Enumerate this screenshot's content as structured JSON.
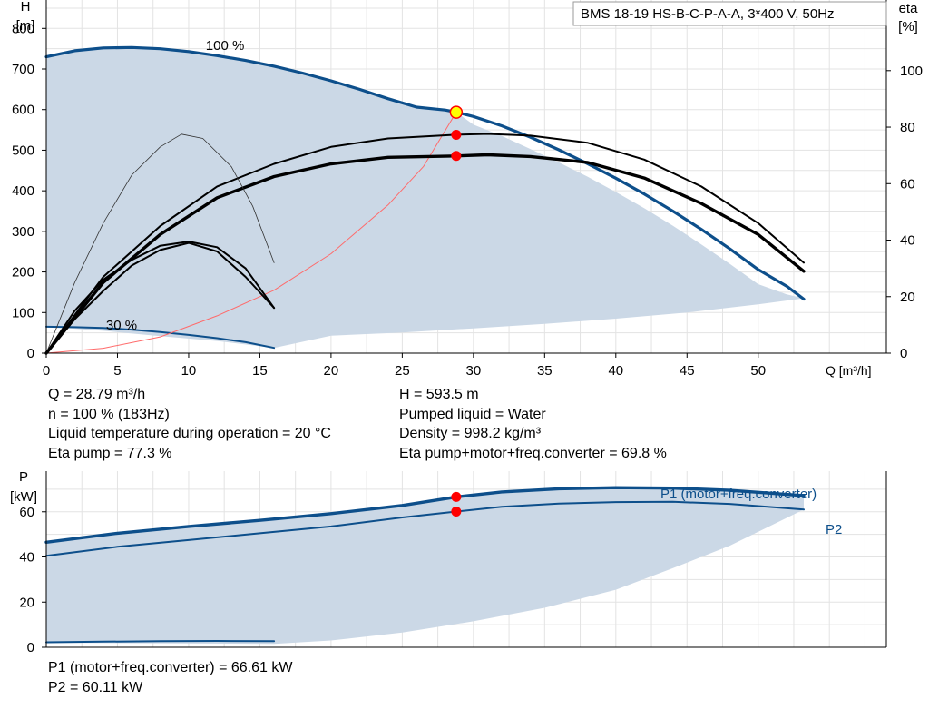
{
  "chart_data": [
    {
      "type": "line",
      "title": "BMS 18-19 HS-B-C-P-A-A, 3*400 V, 50Hz",
      "ylabel": "H",
      "ylabel_unit": "[m]",
      "y2label": "eta",
      "y2label_unit": "[%]",
      "xlabel": "Q [m³/h]",
      "xlim": [
        0,
        59
      ],
      "ylim": [
        0,
        870
      ],
      "y2lim": [
        0,
        125
      ],
      "xticks": [
        0,
        5,
        10,
        15,
        20,
        25,
        30,
        35,
        40,
        45,
        50
      ],
      "yticks": [
        0,
        100,
        200,
        300,
        400,
        500,
        600,
        700,
        800
      ],
      "y2ticks": [
        0,
        20,
        40,
        60,
        80,
        100
      ],
      "grid": true,
      "annotations": [
        {
          "text": "100 %",
          "x": 11.2,
          "y": 778
        },
        {
          "text": "30 %",
          "x": 4.2,
          "y": 90
        }
      ],
      "operating_area_upper": [
        [
          0,
          730
        ],
        [
          2,
          745
        ],
        [
          4,
          752
        ],
        [
          6,
          753
        ],
        [
          8,
          750
        ],
        [
          10,
          743
        ],
        [
          12,
          733
        ],
        [
          14,
          721
        ],
        [
          16,
          707
        ],
        [
          18,
          690
        ],
        [
          20,
          671
        ],
        [
          22,
          650
        ],
        [
          24,
          627
        ],
        [
          26,
          603
        ],
        [
          28.79,
          593.5
        ],
        [
          30,
          563
        ],
        [
          32,
          535
        ],
        [
          34,
          503
        ],
        [
          36,
          470
        ],
        [
          38,
          435
        ],
        [
          40,
          397
        ],
        [
          42,
          357
        ],
        [
          44,
          314
        ],
        [
          46,
          268
        ],
        [
          48,
          220
        ],
        [
          50,
          170
        ],
        [
          52,
          145
        ],
        [
          53.2,
          135
        ]
      ],
      "operating_area_lower": [
        [
          53.2,
          135
        ],
        [
          50,
          120
        ],
        [
          45,
          100
        ],
        [
          40,
          85
        ],
        [
          35,
          72
        ],
        [
          30,
          61
        ],
        [
          25,
          51
        ],
        [
          20,
          43
        ],
        [
          16,
          13
        ],
        [
          12,
          30
        ],
        [
          8,
          42
        ],
        [
          4,
          55
        ],
        [
          0,
          65
        ]
      ],
      "series": [
        {
          "name": "",
          "role": "head-max",
          "axis": "H",
          "points": [
            [
              0,
              730
            ],
            [
              2,
              745
            ],
            [
              4,
              752
            ],
            [
              6,
              753
            ],
            [
              8,
              750
            ],
            [
              10,
              743
            ],
            [
              12,
              733
            ],
            [
              14,
              721
            ],
            [
              16,
              707
            ],
            [
              18,
              690
            ],
            [
              20,
              671
            ],
            [
              22,
              650
            ],
            [
              24,
              627
            ],
            [
              26,
              606
            ],
            [
              28,
              599
            ],
            [
              28.79,
              593.5
            ],
            [
              30,
              583
            ],
            [
              32,
              560
            ],
            [
              34,
              532
            ],
            [
              36,
              501
            ],
            [
              38,
              467
            ],
            [
              40,
              431
            ],
            [
              42,
              392
            ],
            [
              44,
              350
            ],
            [
              46,
              305
            ],
            [
              48,
              257
            ],
            [
              50,
              206
            ],
            [
              52,
              165
            ],
            [
              53.2,
              133
            ]
          ]
        },
        {
          "name": "",
          "role": "head-min",
          "axis": "H",
          "points": [
            [
              0,
              65
            ],
            [
              2,
              64
            ],
            [
              4,
              62
            ],
            [
              6,
              58
            ],
            [
              8,
              52
            ],
            [
              10,
              45
            ],
            [
              12,
              37
            ],
            [
              14,
              27
            ],
            [
              16,
              13
            ]
          ]
        },
        {
          "name": "",
          "role": "system-curve",
          "axis": "H",
          "points": [
            [
              0,
              0
            ],
            [
              4,
              12
            ],
            [
              8,
              40
            ],
            [
              12,
              92
            ],
            [
              16,
              155
            ],
            [
              20,
              245
            ],
            [
              24,
              365
            ],
            [
              26.5,
              460
            ],
            [
              28.79,
              593.5
            ]
          ]
        },
        {
          "name": "",
          "role": "eta-pump",
          "axis": "eta",
          "points": [
            [
              0,
              0
            ],
            [
              4,
              27
            ],
            [
              8,
              45
            ],
            [
              12,
              59
            ],
            [
              16,
              67
            ],
            [
              20,
              73
            ],
            [
              24,
              76
            ],
            [
              28.79,
              77.3
            ],
            [
              31,
              77.6
            ],
            [
              34,
              77
            ],
            [
              38,
              74.5
            ],
            [
              42,
              68.5
            ],
            [
              46,
              59
            ],
            [
              50,
              46
            ],
            [
              53.2,
              32
            ]
          ]
        },
        {
          "name": "",
          "role": "eta-total",
          "axis": "eta",
          "points": [
            [
              0,
              0
            ],
            [
              4,
              25
            ],
            [
              8,
              42
            ],
            [
              12,
              55
            ],
            [
              16,
              62.5
            ],
            [
              20,
              67
            ],
            [
              24,
              69.3
            ],
            [
              28.79,
              69.8
            ],
            [
              31,
              70.2
            ],
            [
              34,
              69.6
            ],
            [
              38,
              67.5
            ],
            [
              42,
              62
            ],
            [
              46,
              53
            ],
            [
              50,
              42
            ],
            [
              53.2,
              29
            ]
          ]
        },
        {
          "name": "",
          "role": "eta-pump-30",
          "axis": "eta",
          "points": [
            [
              0,
              0
            ],
            [
              2,
              25
            ],
            [
              4,
              46
            ],
            [
              6,
              63
            ],
            [
              8,
              73
            ],
            [
              9.5,
              77.5
            ],
            [
              11,
              76
            ],
            [
              13,
              66
            ],
            [
              14.5,
              52
            ],
            [
              16,
              32
            ]
          ]
        },
        {
          "name": "",
          "role": "eta-total-30",
          "axis": "eta",
          "points": [
            [
              0,
              0
            ],
            [
              2,
              15
            ],
            [
              4,
              26
            ],
            [
              6,
              33
            ],
            [
              8,
              38
            ],
            [
              10,
              39.5
            ],
            [
              12,
              37.5
            ],
            [
              14,
              30
            ],
            [
              16,
              16
            ]
          ]
        },
        {
          "name": "",
          "role": "eta-extra-30",
          "axis": "eta",
          "points": [
            [
              0,
              0
            ],
            [
              2,
              12
            ],
            [
              4,
              22
            ],
            [
              6,
              31
            ],
            [
              8,
              36.5
            ],
            [
              10,
              39
            ],
            [
              12,
              36
            ],
            [
              14,
              27
            ],
            [
              16,
              16
            ]
          ]
        }
      ],
      "operating_points": [
        {
          "x": 28.79,
          "y": 593.5,
          "axis": "H",
          "color": "#ffff00"
        },
        {
          "x": 28.79,
          "y": 77.3,
          "axis": "eta",
          "color": "#ff0000"
        },
        {
          "x": 28.79,
          "y": 69.8,
          "axis": "eta",
          "color": "#ff0000"
        }
      ]
    },
    {
      "type": "line",
      "ylabel": "P",
      "ylabel_unit": "[kW]",
      "xlim": [
        0,
        59
      ],
      "ylim": [
        0,
        78
      ],
      "yticks": [
        0,
        20,
        40,
        60
      ],
      "grid": true,
      "operating_area_upper": [
        [
          0,
          46.5
        ],
        [
          5,
          50.5
        ],
        [
          10,
          53.5
        ],
        [
          15,
          56.2
        ],
        [
          20,
          58.8
        ],
        [
          25,
          62.5
        ],
        [
          28.79,
          66.6
        ],
        [
          35,
          69.4
        ],
        [
          40,
          70.6
        ],
        [
          45,
          70.5
        ],
        [
          50,
          68.8
        ],
        [
          53.2,
          67
        ]
      ],
      "operating_area_lower": [
        [
          53.2,
          61
        ],
        [
          48,
          45
        ],
        [
          44,
          35
        ],
        [
          40,
          25.5
        ],
        [
          35,
          17.5
        ],
        [
          30,
          11.5
        ],
        [
          25,
          6.5
        ],
        [
          20,
          3
        ],
        [
          16,
          1.5
        ],
        [
          0,
          2
        ]
      ],
      "series": [
        {
          "name": "P1 (motor+freq.converter)",
          "points": [
            [
              0,
              46.5
            ],
            [
              5,
              50.5
            ],
            [
              10,
              53.5
            ],
            [
              15,
              56.2
            ],
            [
              20,
              59.2
            ],
            [
              25,
              62.8
            ],
            [
              28.79,
              66.6
            ],
            [
              32,
              68.8
            ],
            [
              36,
              70.2
            ],
            [
              40,
              70.7
            ],
            [
              44,
              70.5
            ],
            [
              48,
              69.5
            ],
            [
              53.2,
              67.2
            ]
          ]
        },
        {
          "name": "P2",
          "points": [
            [
              0,
              40.5
            ],
            [
              5,
              44.5
            ],
            [
              10,
              47.5
            ],
            [
              15,
              50.5
            ],
            [
              20,
              53.5
            ],
            [
              25,
              57.5
            ],
            [
              28.79,
              60.1
            ],
            [
              32,
              62.2
            ],
            [
              36,
              63.6
            ],
            [
              40,
              64.3
            ],
            [
              44,
              64.4
            ],
            [
              48,
              63.5
            ],
            [
              53.2,
              61
            ]
          ]
        },
        {
          "name": "",
          "role": "P-min",
          "points": [
            [
              0,
              2.2
            ],
            [
              4,
              2.5
            ],
            [
              8,
              2.7
            ],
            [
              12,
              2.8
            ],
            [
              16,
              2.7
            ]
          ]
        }
      ],
      "operating_points": [
        {
          "x": 28.79,
          "y": 66.61,
          "color": "#ff0000"
        },
        {
          "x": 28.79,
          "y": 60.11,
          "color": "#ff0000"
        }
      ]
    }
  ],
  "info": {
    "left": [
      "Q = 28.79 m³/h",
      "n = 100 % (183Hz)",
      "Liquid temperature during operation = 20 °C",
      "Eta pump = 77.3 %"
    ],
    "right": [
      "H = 593.5 m",
      "Pumped liquid = Water",
      "Density = 998.2 kg/m³",
      "Eta pump+motor+freq.converter = 69.8 %"
    ],
    "power": [
      "P1 (motor+freq.converter) = 66.61 kW",
      "P2 = 60.11 kW"
    ]
  },
  "colors": {
    "curve": "#0d4f8b",
    "area": "#cbd8e6",
    "grid": "#e3e3e3",
    "system": "#ff6a6a",
    "marker": "#ff0000",
    "operating_point": "#ffff00"
  }
}
